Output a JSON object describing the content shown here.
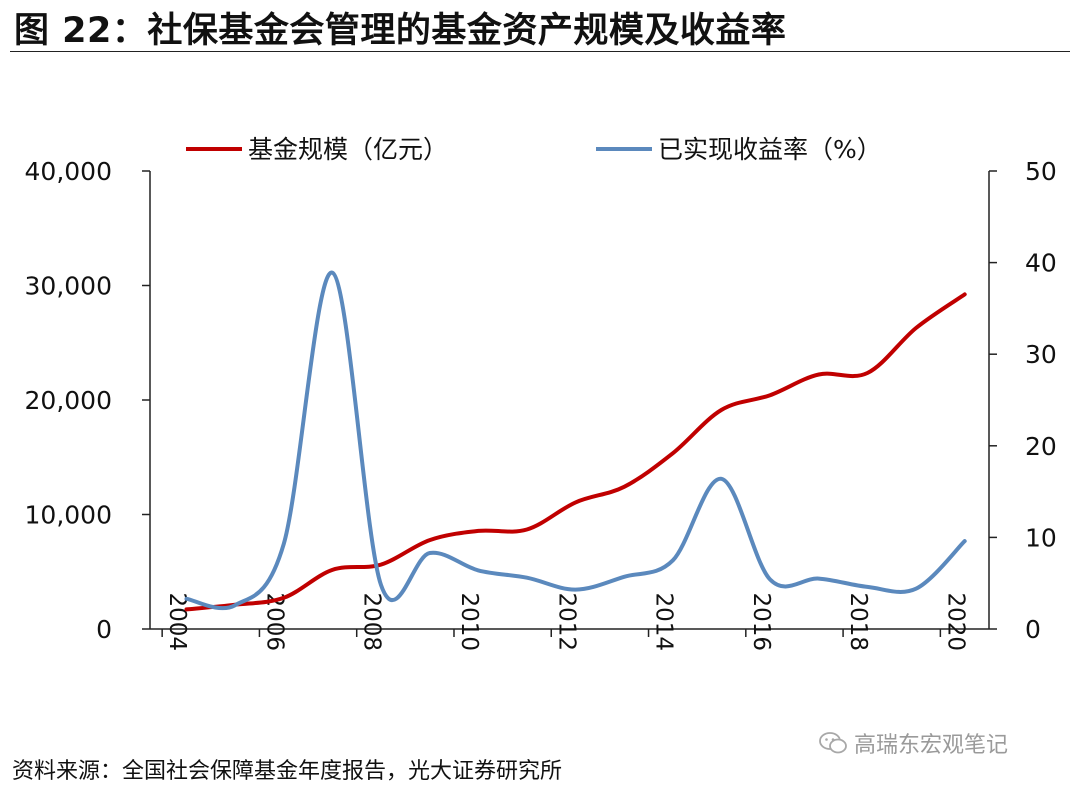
{
  "title": "图 22：社保基金会管理的基金资产规模及收益率",
  "source": "资料来源：全国社会保障基金年度报告，光大证券研究所",
  "watermark": "高瑞东宏观笔记",
  "colors": {
    "size_series": "#c00000",
    "return_series": "#5b89bd",
    "axis": "#222222"
  },
  "chart_data": {
    "type": "line",
    "x": [
      2004,
      2005,
      2006,
      2007,
      2008,
      2009,
      2010,
      2011,
      2012,
      2013,
      2014,
      2015,
      2016,
      2017,
      2018,
      2019,
      2020
    ],
    "x_tick_labels": [
      "2004",
      "2006",
      "2008",
      "2010",
      "2012",
      "2014",
      "2016",
      "2018",
      "2020"
    ],
    "y_left_ticks": [
      "0",
      "10,000",
      "20,000",
      "30,000",
      "40,000"
    ],
    "y_right_ticks": [
      "0",
      "10",
      "20",
      "30",
      "40",
      "50"
    ],
    "ylim_left": [
      0,
      40000
    ],
    "ylim_right": [
      0,
      50
    ],
    "legend_position": "top",
    "grid": false,
    "series": [
      {
        "name": "基金规模（亿元）",
        "axis": "left",
        "color": "#c00000",
        "values": [
          1711,
          2118,
          2725,
          5162,
          5624,
          7766,
          8567,
          8688,
          11060,
          12416,
          15356,
          19138,
          20423,
          22231,
          22354,
          26285,
          29226
        ]
      },
      {
        "name": "已实现收益率（%）",
        "axis": "right",
        "color": "#5b89bd",
        "values": [
          3.3,
          2.6,
          9.3,
          38.9,
          4.8,
          8.3,
          6.4,
          5.6,
          4.3,
          5.7,
          7.5,
          16.4,
          5.4,
          5.5,
          4.6,
          4.4,
          9.6
        ]
      }
    ]
  }
}
